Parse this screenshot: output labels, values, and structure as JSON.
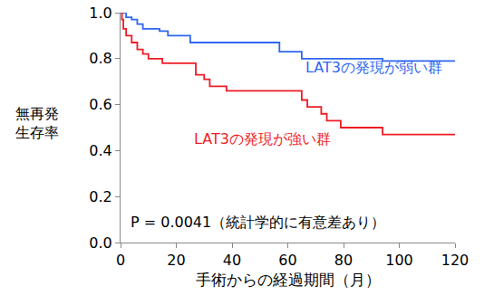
{
  "chart_data": {
    "type": "line",
    "line_style": "step",
    "xlabel": "手術からの経過期間（月）",
    "ylabel": "無再発\n生存率",
    "xlim": [
      0,
      120
    ],
    "xticks": [
      0,
      20,
      40,
      60,
      80,
      100,
      120
    ],
    "ylim": [
      0,
      1
    ],
    "yticks": [
      {
        "value": 0,
        "label": "0.0"
      },
      0.2,
      0.4,
      0.6,
      0.8,
      {
        "value": 1,
        "label": "1.0"
      }
    ],
    "grid": false,
    "series": [
      {
        "name": "LAT3の発現が弱い群",
        "color": "#2f66f0",
        "x": [
          0,
          2,
          4,
          6,
          8,
          14,
          17,
          25,
          57,
          65,
          94,
          120
        ],
        "values": [
          1.0,
          0.98,
          0.97,
          0.95,
          0.93,
          0.92,
          0.9,
          0.87,
          0.83,
          0.8,
          0.79,
          0.79
        ]
      },
      {
        "name": "LAT3の発現が強い群",
        "color": "#ee1c25",
        "x": [
          0,
          0.5,
          1,
          2,
          4,
          6,
          8,
          10,
          15,
          27,
          30,
          32,
          38,
          65,
          67,
          72,
          74,
          79,
          94,
          120
        ],
        "values": [
          1.0,
          0.97,
          0.93,
          0.9,
          0.87,
          0.84,
          0.82,
          0.8,
          0.78,
          0.73,
          0.71,
          0.68,
          0.66,
          0.62,
          0.59,
          0.56,
          0.53,
          0.5,
          0.47,
          0.47
        ]
      }
    ],
    "annotations": [
      {
        "text": "LAT3の発現が弱い群",
        "x": 91,
        "y": 0.76,
        "color": "#2f66f0"
      },
      {
        "text": "LAT3の発現が強い群",
        "x": 51,
        "y": 0.45,
        "color": "#ee1c25"
      },
      {
        "text": "P = 0.0041（統計学的に有意差あり）",
        "x": 3,
        "y": 0.09,
        "color": "#000000"
      }
    ]
  }
}
